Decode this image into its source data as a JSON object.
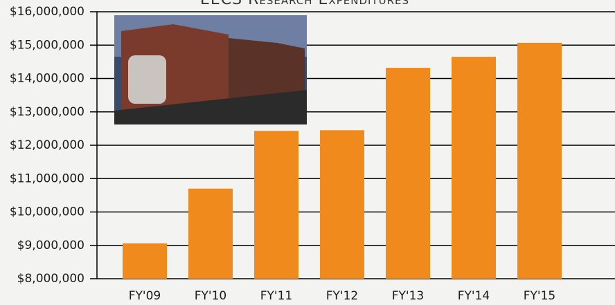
{
  "chart_data": {
    "type": "bar",
    "title": "EECS Research Expenditures",
    "categories": [
      "FY'09",
      "FY'10",
      "FY'11",
      "FY'12",
      "FY'13",
      "FY'14",
      "FY'15"
    ],
    "values": [
      9060000,
      10700000,
      12430000,
      12450000,
      14320000,
      14650000,
      15070000
    ],
    "color": "#f08a1c",
    "ylim": [
      8000000,
      16000000
    ],
    "yticks": [
      {
        "value": 8000000,
        "label": "$8,000,000"
      },
      {
        "value": 9000000,
        "label": "$9,000,000"
      },
      {
        "value": 10000000,
        "label": "$10,000,000"
      },
      {
        "value": 11000000,
        "label": "$11,000,000"
      },
      {
        "value": 12000000,
        "label": "$12,000,000"
      },
      {
        "value": 13000000,
        "label": "$13,000,000"
      },
      {
        "value": 14000000,
        "label": "$14,000,000"
      },
      {
        "value": 15000000,
        "label": "$15,000,000"
      },
      {
        "value": 16000000,
        "label": "$16,000,000"
      }
    ],
    "grid": true
  }
}
